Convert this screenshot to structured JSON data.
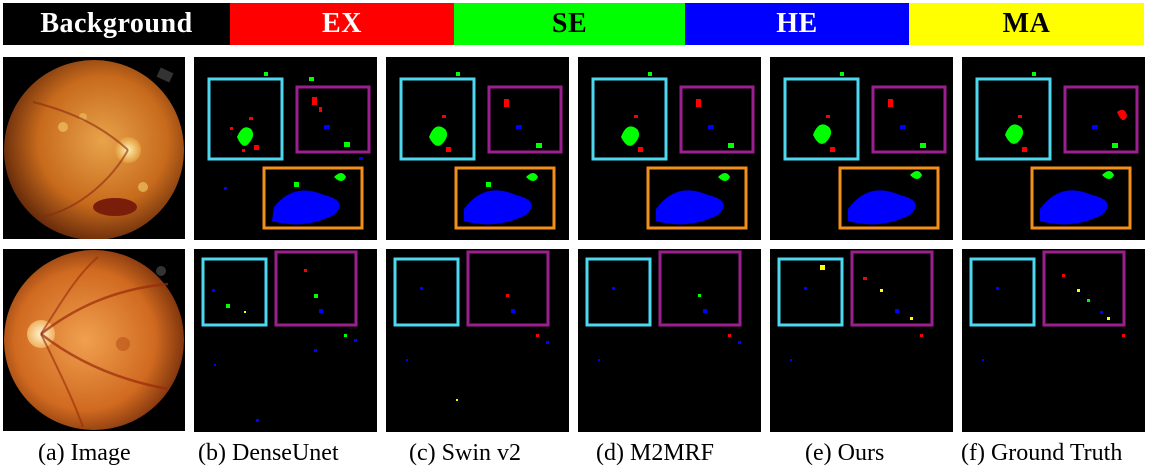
{
  "legend": {
    "background": "Background",
    "ex": "EX",
    "se": "SE",
    "he": "HE",
    "ma": "MA"
  },
  "colors": {
    "background": "#000000",
    "ex": "#ff0000",
    "se": "#00ff00",
    "he": "#0000ff",
    "ma": "#ffff00",
    "box_cyan": "#4dd8f0",
    "box_purple": "#9b1f8e",
    "box_orange": "#f39018"
  },
  "captions": {
    "a": "(a) Image",
    "b": "(b) DenseUnet",
    "c": "(c) Swin v2",
    "d": "(d) M2MRF",
    "e": "(e) Ours",
    "f": "(f) Ground Truth"
  }
}
